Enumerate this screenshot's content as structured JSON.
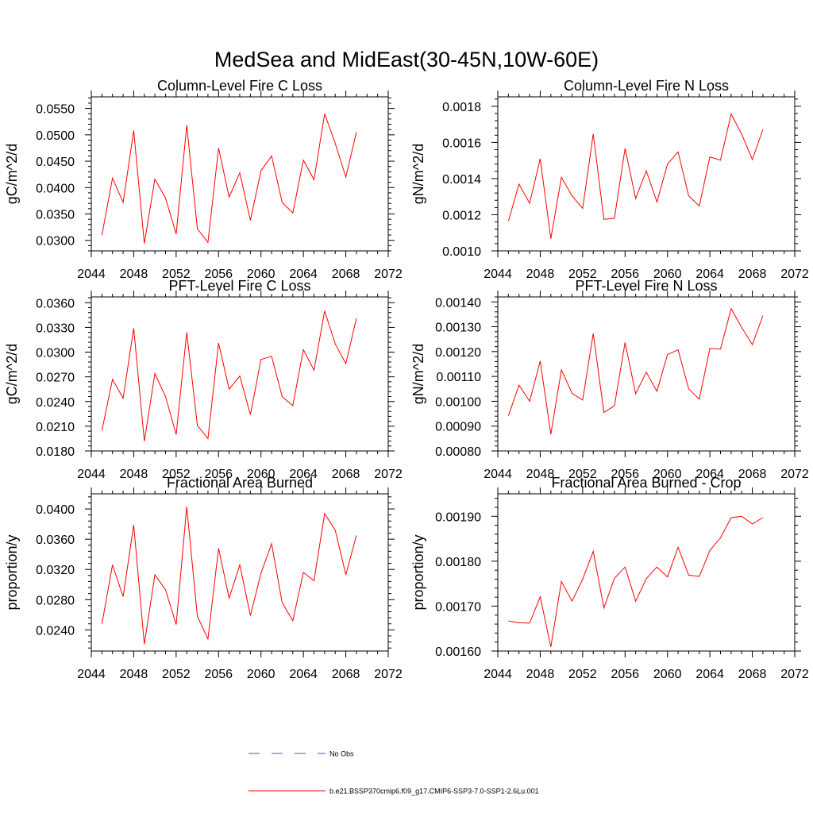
{
  "figure": {
    "title": "MedSea and MidEast(30-45N,10W-60E)"
  },
  "legend": {
    "items": [
      {
        "label": "No Obs",
        "color": "#4a5aa8",
        "dash": true
      },
      {
        "label": "b.e21.BSSP370cmip6.f09_g17.CMIP6-SSP3-7.0-SSP1-2.6Lu.001",
        "color": "#ff0000",
        "dash": false
      }
    ]
  },
  "chart_data": [
    {
      "type": "line",
      "title": "Column-Level Fire C Loss",
      "ylabel": "gC/m^2/d",
      "xlim": [
        2044,
        2072
      ],
      "ylim": [
        0.028,
        0.0572
      ],
      "xticks": [
        2044,
        2048,
        2052,
        2056,
        2060,
        2064,
        2068,
        2072
      ],
      "yticks": [
        0.03,
        0.035,
        0.04,
        0.045,
        0.05,
        0.055
      ],
      "ytick_labels": [
        "0.0300",
        "0.0350",
        "0.0400",
        "0.0450",
        "0.0500",
        "0.0550"
      ],
      "series": [
        {
          "color": "#ff0000",
          "x": [
            2045,
            2046,
            2047,
            2048,
            2049,
            2050,
            2051,
            2052,
            2053,
            2054,
            2055,
            2056,
            2057,
            2058,
            2059,
            2060,
            2061,
            2062,
            2063,
            2064,
            2065,
            2066,
            2067,
            2068,
            2069
          ],
          "values": [
            0.031,
            0.0418,
            0.0372,
            0.0508,
            0.0294,
            0.0416,
            0.038,
            0.0312,
            0.0518,
            0.0322,
            0.0296,
            0.0475,
            0.0382,
            0.0428,
            0.0338,
            0.0432,
            0.046,
            0.0372,
            0.0352,
            0.0452,
            0.0415,
            0.054,
            0.0484,
            0.042,
            0.0505
          ]
        }
      ]
    },
    {
      "type": "line",
      "title": "Column-Level Fire N Loss",
      "ylabel": "gN/m^2/d",
      "xlim": [
        2044,
        2072
      ],
      "ylim": [
        0.001,
        0.001852
      ],
      "xticks": [
        2044,
        2048,
        2052,
        2056,
        2060,
        2064,
        2068,
        2072
      ],
      "yticks": [
        0.001,
        0.0012,
        0.0014,
        0.0016,
        0.0018
      ],
      "ytick_labels": [
        "0.0010",
        "0.0012",
        "0.0014",
        "0.0016",
        "0.0018"
      ],
      "series": [
        {
          "color": "#ff0000",
          "x": [
            2045,
            2046,
            2047,
            2048,
            2049,
            2050,
            2051,
            2052,
            2053,
            2054,
            2055,
            2056,
            2057,
            2058,
            2059,
            2060,
            2061,
            2062,
            2063,
            2064,
            2065,
            2066,
            2067,
            2068,
            2069
          ],
          "values": [
            0.001165,
            0.00137,
            0.001263,
            0.00151,
            0.001067,
            0.001407,
            0.001305,
            0.001235,
            0.001647,
            0.001175,
            0.00118,
            0.001567,
            0.00129,
            0.001443,
            0.00127,
            0.00148,
            0.001547,
            0.001305,
            0.001248,
            0.00152,
            0.001502,
            0.001757,
            0.001645,
            0.001505,
            0.001672
          ]
        }
      ]
    },
    {
      "type": "line",
      "title": "PFT-Level Fire C Loss",
      "ylabel": "gC/m^2/d",
      "xlim": [
        2044,
        2072
      ],
      "ylim": [
        0.018,
        0.0367
      ],
      "xticks": [
        2044,
        2048,
        2052,
        2056,
        2060,
        2064,
        2068,
        2072
      ],
      "yticks": [
        0.018,
        0.021,
        0.024,
        0.027,
        0.03,
        0.033,
        0.036
      ],
      "ytick_labels": [
        "0.0180",
        "0.0210",
        "0.0240",
        "0.0270",
        "0.0300",
        "0.0330",
        "0.0360"
      ],
      "series": [
        {
          "color": "#ff0000",
          "x": [
            2045,
            2046,
            2047,
            2048,
            2049,
            2050,
            2051,
            2052,
            2053,
            2054,
            2055,
            2056,
            2057,
            2058,
            2059,
            2060,
            2061,
            2062,
            2063,
            2064,
            2065,
            2066,
            2067,
            2068,
            2069
          ],
          "values": [
            0.0205,
            0.0267,
            0.0244,
            0.0329,
            0.0192,
            0.0274,
            0.0246,
            0.02,
            0.0324,
            0.0211,
            0.0195,
            0.0311,
            0.0255,
            0.0271,
            0.0224,
            0.0291,
            0.0295,
            0.0246,
            0.0235,
            0.0303,
            0.0278,
            0.035,
            0.031,
            0.0286,
            0.0341
          ]
        }
      ]
    },
    {
      "type": "line",
      "title": "PFT-Level Fire N Loss",
      "ylabel": "gN/m^2/d",
      "xlim": [
        2044,
        2072
      ],
      "ylim": [
        0.0008,
        0.00142
      ],
      "xticks": [
        2044,
        2048,
        2052,
        2056,
        2060,
        2064,
        2068,
        2072
      ],
      "yticks": [
        0.0008,
        0.0009,
        0.001,
        0.0011,
        0.0012,
        0.0013,
        0.0014
      ],
      "ytick_labels": [
        "0.00080",
        "0.00090",
        "0.00100",
        "0.00110",
        "0.00120",
        "0.00130",
        "0.00140"
      ],
      "series": [
        {
          "color": "#ff0000",
          "x": [
            2045,
            2046,
            2047,
            2048,
            2049,
            2050,
            2051,
            2052,
            2053,
            2054,
            2055,
            2056,
            2057,
            2058,
            2059,
            2060,
            2061,
            2062,
            2063,
            2064,
            2065,
            2066,
            2067,
            2068,
            2069
          ],
          "values": [
            0.000942,
            0.001065,
            0.001,
            0.001162,
            0.000867,
            0.001127,
            0.001032,
            0.001005,
            0.001273,
            0.000955,
            0.000982,
            0.001237,
            0.00103,
            0.001117,
            0.00104,
            0.001188,
            0.001207,
            0.00105,
            0.001008,
            0.001213,
            0.00121,
            0.001373,
            0.001297,
            0.001228,
            0.001345
          ]
        }
      ]
    },
    {
      "type": "line",
      "title": "Fractional Area Burned",
      "ylabel": "proportion/y",
      "xlim": [
        2044,
        2072
      ],
      "ylim": [
        0.0212,
        0.042
      ],
      "xticks": [
        2044,
        2048,
        2052,
        2056,
        2060,
        2064,
        2068,
        2072
      ],
      "yticks": [
        0.024,
        0.028,
        0.032,
        0.036,
        0.04
      ],
      "ytick_labels": [
        "0.0240",
        "0.0280",
        "0.0320",
        "0.0360",
        "0.0400"
      ],
      "series": [
        {
          "color": "#ff0000",
          "x": [
            2045,
            2046,
            2047,
            2048,
            2049,
            2050,
            2051,
            2052,
            2053,
            2054,
            2055,
            2056,
            2057,
            2058,
            2059,
            2060,
            2061,
            2062,
            2063,
            2064,
            2065,
            2066,
            2067,
            2068,
            2069
          ],
          "values": [
            0.0248,
            0.0326,
            0.0284,
            0.0379,
            0.0221,
            0.0313,
            0.0293,
            0.0247,
            0.0403,
            0.0258,
            0.0228,
            0.0348,
            0.0282,
            0.0326,
            0.0259,
            0.0315,
            0.0354,
            0.0276,
            0.0252,
            0.0316,
            0.0305,
            0.0394,
            0.0372,
            0.0313,
            0.0365
          ]
        }
      ]
    },
    {
      "type": "line",
      "title": "Fractional Area Burned - Crop",
      "ylabel": "proportion/y",
      "xlim": [
        2044,
        2072
      ],
      "ylim": [
        0.0016,
        0.00195
      ],
      "xticks": [
        2044,
        2048,
        2052,
        2056,
        2060,
        2064,
        2068,
        2072
      ],
      "yticks": [
        0.0016,
        0.0017,
        0.0018,
        0.0019
      ],
      "ytick_labels": [
        "0.00160",
        "0.00170",
        "0.00180",
        "0.00190"
      ],
      "series": [
        {
          "color": "#ff0000",
          "x": [
            2045,
            2046,
            2047,
            2048,
            2049,
            2050,
            2051,
            2052,
            2053,
            2054,
            2055,
            2056,
            2057,
            2058,
            2059,
            2060,
            2061,
            2062,
            2063,
            2064,
            2065,
            2066,
            2067,
            2068,
            2069
          ],
          "values": [
            0.001667,
            0.001663,
            0.001662,
            0.001721,
            0.001609,
            0.001755,
            0.001711,
            0.00176,
            0.001822,
            0.001696,
            0.001762,
            0.001787,
            0.001711,
            0.001761,
            0.001787,
            0.001765,
            0.001831,
            0.001769,
            0.001766,
            0.001824,
            0.001852,
            0.001897,
            0.0019,
            0.001883,
            0.001897
          ]
        }
      ]
    }
  ]
}
